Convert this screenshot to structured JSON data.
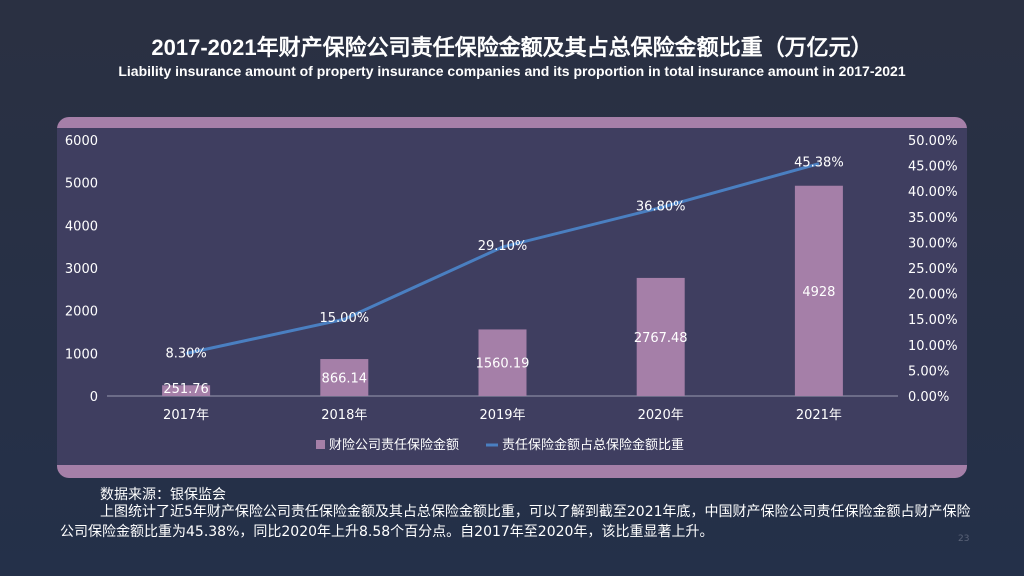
{
  "title": "2017-2021年财产保险公司责任保险金额及其占总保险金额比重（万亿元）",
  "subtitle": "Liability insurance amount of property insurance companies and its proportion in total insurance amount in 2017-2021",
  "chart_data": {
    "type": "bar+line",
    "categories": [
      "2017年",
      "2018年",
      "2019年",
      "2020年",
      "2021年"
    ],
    "series": [
      {
        "name": "财险公司责任保险金额",
        "type": "bar",
        "axis": "left",
        "values": [
          251.76,
          866.14,
          1560.19,
          2767.48,
          4928
        ],
        "labels": [
          "251.76",
          "866.14",
          "1560.19",
          "2767.48",
          "4928"
        ],
        "color": "#a57fa8"
      },
      {
        "name": "责任保险金额占总保险金额比重",
        "type": "line",
        "axis": "right",
        "values": [
          8.3,
          15.0,
          29.1,
          36.8,
          45.38
        ],
        "labels": [
          "8.30%",
          "15.00%",
          "29.10%",
          "36.80%",
          "45.38%"
        ],
        "color": "#4a7fc1"
      }
    ],
    "left_axis": {
      "ylim": [
        0,
        6000
      ],
      "ticks": [
        "0",
        "1000",
        "2000",
        "3000",
        "4000",
        "5000",
        "6000"
      ]
    },
    "right_axis": {
      "ylim": [
        0,
        50
      ],
      "ticks": [
        "0.00%",
        "5.00%",
        "10.00%",
        "15.00%",
        "20.00%",
        "25.00%",
        "30.00%",
        "35.00%",
        "40.00%",
        "45.00%",
        "50.00%"
      ]
    },
    "legend": "bottom",
    "grid": false
  },
  "source": "数据来源：银保监会",
  "description": "上图统计了近5年财产保险公司责任保险金额及其占总保险金额比重，可以了解到截至2021年底，中国财产保险公司责任保险金额占财产保险公司保险金额比重为45.38%，同比2020年上升8.58个百分点。自2017年至2020年，该比重显著上升。",
  "page_number": "23"
}
